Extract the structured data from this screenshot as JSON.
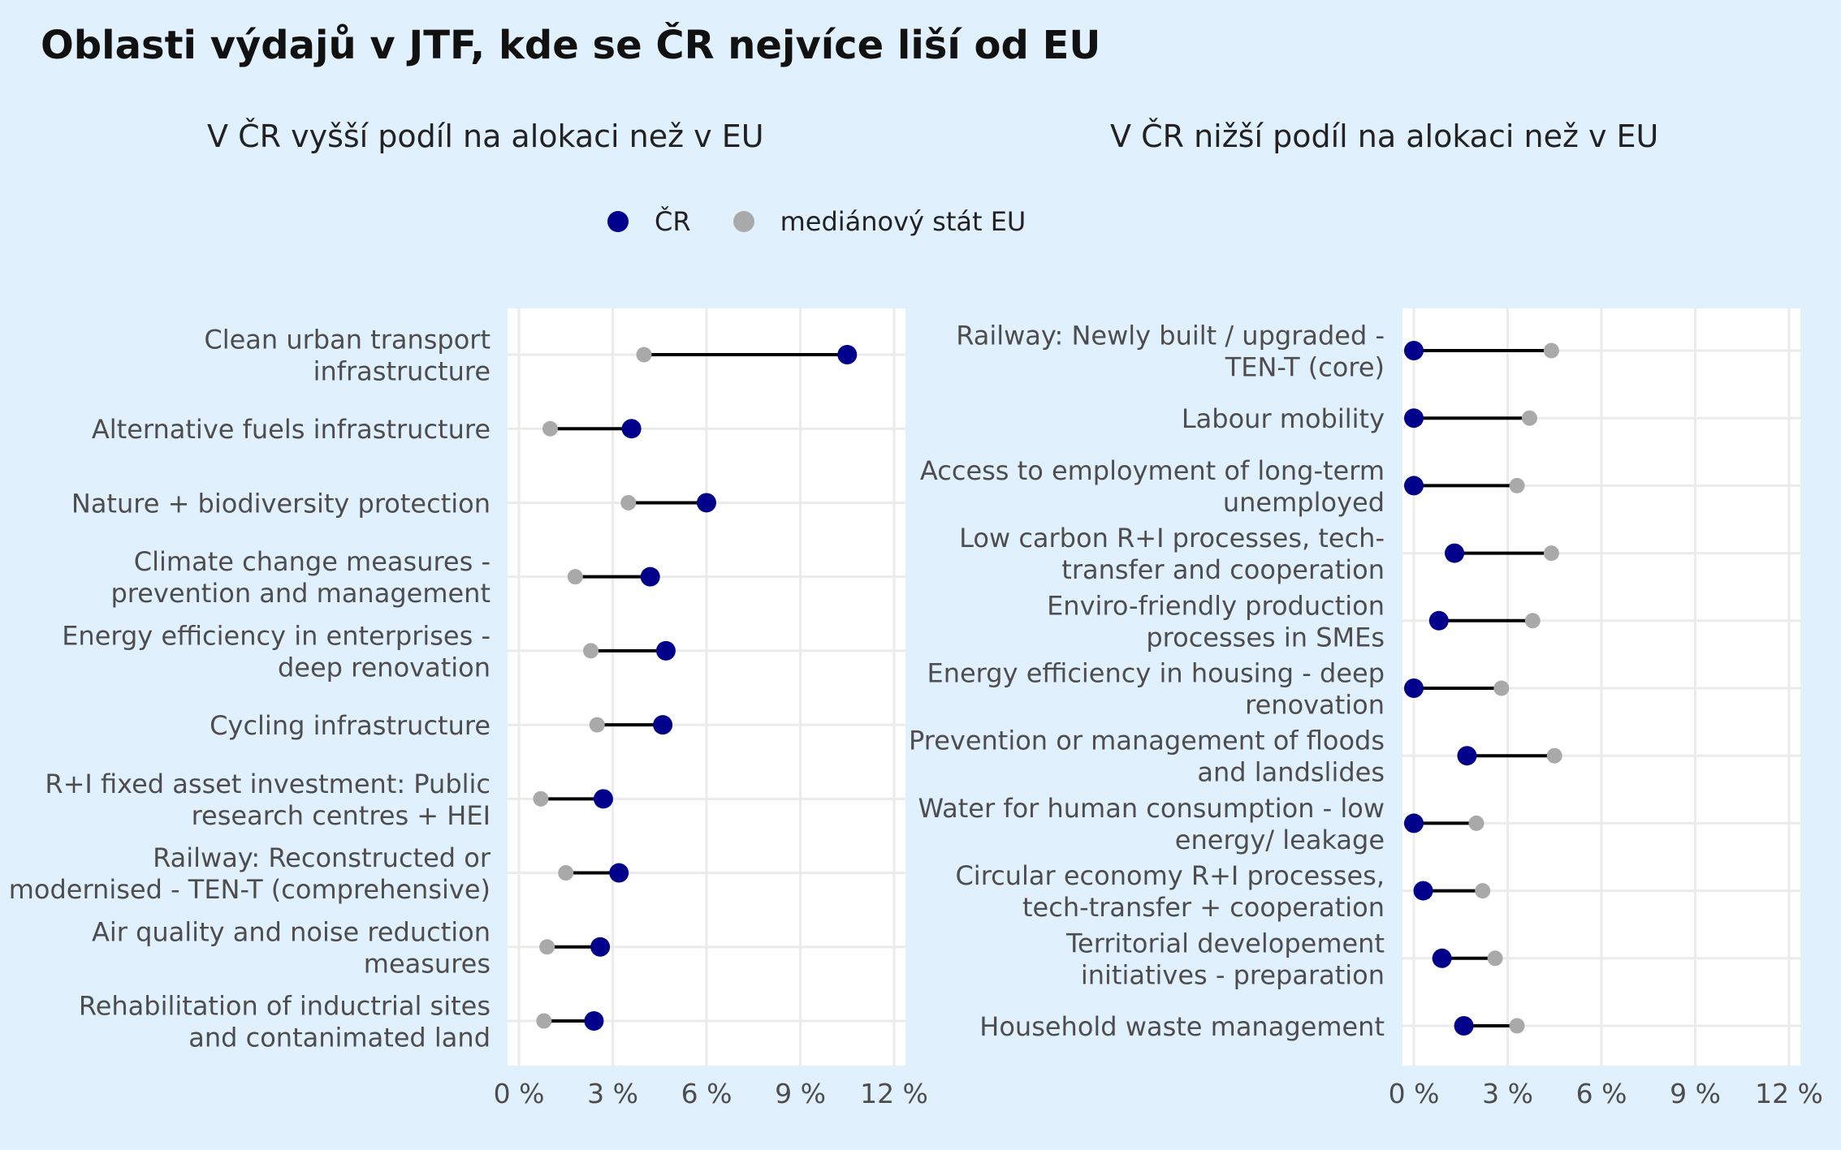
{
  "title": "Oblasti výdajů v JTF, kde se ČR nejvíce liší od EU",
  "legend": {
    "cr_label": "ČR",
    "eu_label": "mediánový stát EU"
  },
  "colors": {
    "cr": "#00008b",
    "eu": "#a9a9a9",
    "connector": "#000000",
    "panel_bg": "#ffffff",
    "page_bg": "#e1f0fd",
    "grid": "#ebebeb",
    "label_text": "#4d4d4d"
  },
  "chart_data": [
    {
      "type": "dumbbell",
      "subtitle": "V ČR vyšší podíl na alokaci než v EU",
      "xlim": [
        0,
        12
      ],
      "x_ticks": [
        0,
        3,
        6,
        9,
        12
      ],
      "x_tick_labels": [
        "0 %",
        "3 %",
        "6 %",
        "9 %",
        "12 %"
      ],
      "grid": true,
      "legend_position": "top",
      "series": [
        {
          "name": "ČR",
          "color": "#00008b"
        },
        {
          "name": "mediánový stát EU",
          "color": "#a9a9a9"
        }
      ],
      "categories": [
        {
          "label": [
            "Clean urban transport",
            "infrastructure"
          ],
          "cr": 10.5,
          "eu": 4.0
        },
        {
          "label": [
            "Alternative fuels infrastructure"
          ],
          "cr": 3.6,
          "eu": 1.0
        },
        {
          "label": [
            "Nature + biodiversity protection"
          ],
          "cr": 6.0,
          "eu": 3.5
        },
        {
          "label": [
            "Climate change measures -",
            "prevention and management"
          ],
          "cr": 4.2,
          "eu": 1.8
        },
        {
          "label": [
            "Energy efficiency in enterprises -",
            "deep renovation"
          ],
          "cr": 4.7,
          "eu": 2.3
        },
        {
          "label": [
            "Cycling infrastructure"
          ],
          "cr": 4.6,
          "eu": 2.5
        },
        {
          "label": [
            "R+I fixed asset investment: Public",
            "research centres + HEI"
          ],
          "cr": 2.7,
          "eu": 0.7
        },
        {
          "label": [
            "Railway: Reconstructed or",
            "modernised - TEN-T (comprehensive)"
          ],
          "cr": 3.2,
          "eu": 1.5
        },
        {
          "label": [
            "Air quality and noise reduction",
            "measures"
          ],
          "cr": 2.6,
          "eu": 0.9
        },
        {
          "label": [
            "Rehabilitation of inductrial sites",
            "and contanimated land"
          ],
          "cr": 2.4,
          "eu": 0.8
        }
      ]
    },
    {
      "type": "dumbbell",
      "subtitle": "V ČR nižší podíl na alokaci než v EU",
      "xlim": [
        0,
        12
      ],
      "x_ticks": [
        0,
        3,
        6,
        9,
        12
      ],
      "x_tick_labels": [
        "0 %",
        "3 %",
        "6 %",
        "9 %",
        "12 %"
      ],
      "grid": true,
      "legend_position": "top",
      "series": [
        {
          "name": "ČR",
          "color": "#00008b"
        },
        {
          "name": "mediánový stát EU",
          "color": "#a9a9a9"
        }
      ],
      "categories": [
        {
          "label": [
            "Railway: Newly built / upgraded -",
            "TEN-T (core)"
          ],
          "cr": 0.0,
          "eu": 4.4
        },
        {
          "label": [
            "Labour mobility"
          ],
          "cr": 0.0,
          "eu": 3.7
        },
        {
          "label": [
            "Access to employment of long-term",
            "unemployed"
          ],
          "cr": 0.0,
          "eu": 3.3
        },
        {
          "label": [
            "Low carbon R+I processes, tech-",
            "transfer and cooperation"
          ],
          "cr": 1.3,
          "eu": 4.4
        },
        {
          "label": [
            "Enviro-friendly production",
            "processes in SMEs"
          ],
          "cr": 0.8,
          "eu": 3.8
        },
        {
          "label": [
            "Energy efficiency in housing - deep",
            "renovation"
          ],
          "cr": 0.0,
          "eu": 2.8
        },
        {
          "label": [
            "Prevention or management of floods",
            "and landslides"
          ],
          "cr": 1.7,
          "eu": 4.5
        },
        {
          "label": [
            "Water for human consumption - low",
            "energy/ leakage"
          ],
          "cr": 0.0,
          "eu": 2.0
        },
        {
          "label": [
            "Circular economy R+I processes,",
            "tech-transfer + cooperation"
          ],
          "cr": 0.3,
          "eu": 2.2
        },
        {
          "label": [
            "Territorial developement",
            "initiatives - preparation"
          ],
          "cr": 0.9,
          "eu": 2.6
        },
        {
          "label": [
            "Household waste management"
          ],
          "cr": 1.6,
          "eu": 3.3
        }
      ]
    }
  ]
}
